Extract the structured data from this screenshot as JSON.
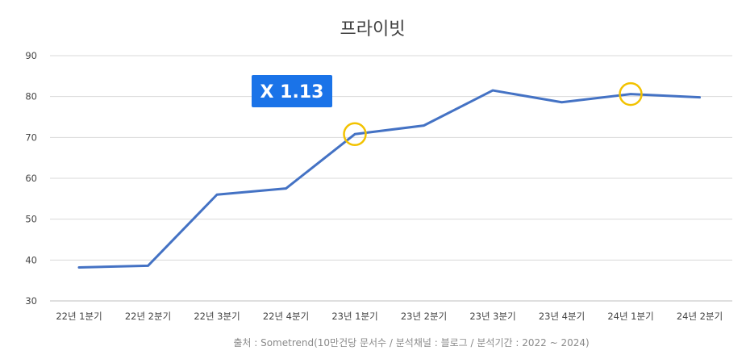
{
  "chart_data": {
    "type": "line",
    "title": "프라이빗",
    "categories": [
      "22년 1분기",
      "22년 2분기",
      "22년 3분기",
      "22년 4분기",
      "23년 1분기",
      "23년 2분기",
      "23년 3분기",
      "23년 4분기",
      "24년 1분기",
      "24년 2분기"
    ],
    "values": [
      38.2,
      38.6,
      56.0,
      57.5,
      70.8,
      72.9,
      81.5,
      78.6,
      80.6,
      79.8
    ],
    "ylim": [
      30,
      90
    ],
    "yticks": [
      30,
      40,
      50,
      60,
      70,
      80,
      90
    ],
    "grid": true,
    "legend": "none",
    "line_color": "#4472c4",
    "highlight_color": "#f2c200",
    "highlighted_categories": [
      "23년 1분기",
      "24년 1분기"
    ],
    "annotation": {
      "text": "X 1.13",
      "background": "#1a73e8",
      "color": "#ffffff"
    },
    "source": "출처 : Sometrend(10만건당 문서수 / 분석채널 : 블로그 / 분석기간 : 2022 ~ 2024)"
  }
}
